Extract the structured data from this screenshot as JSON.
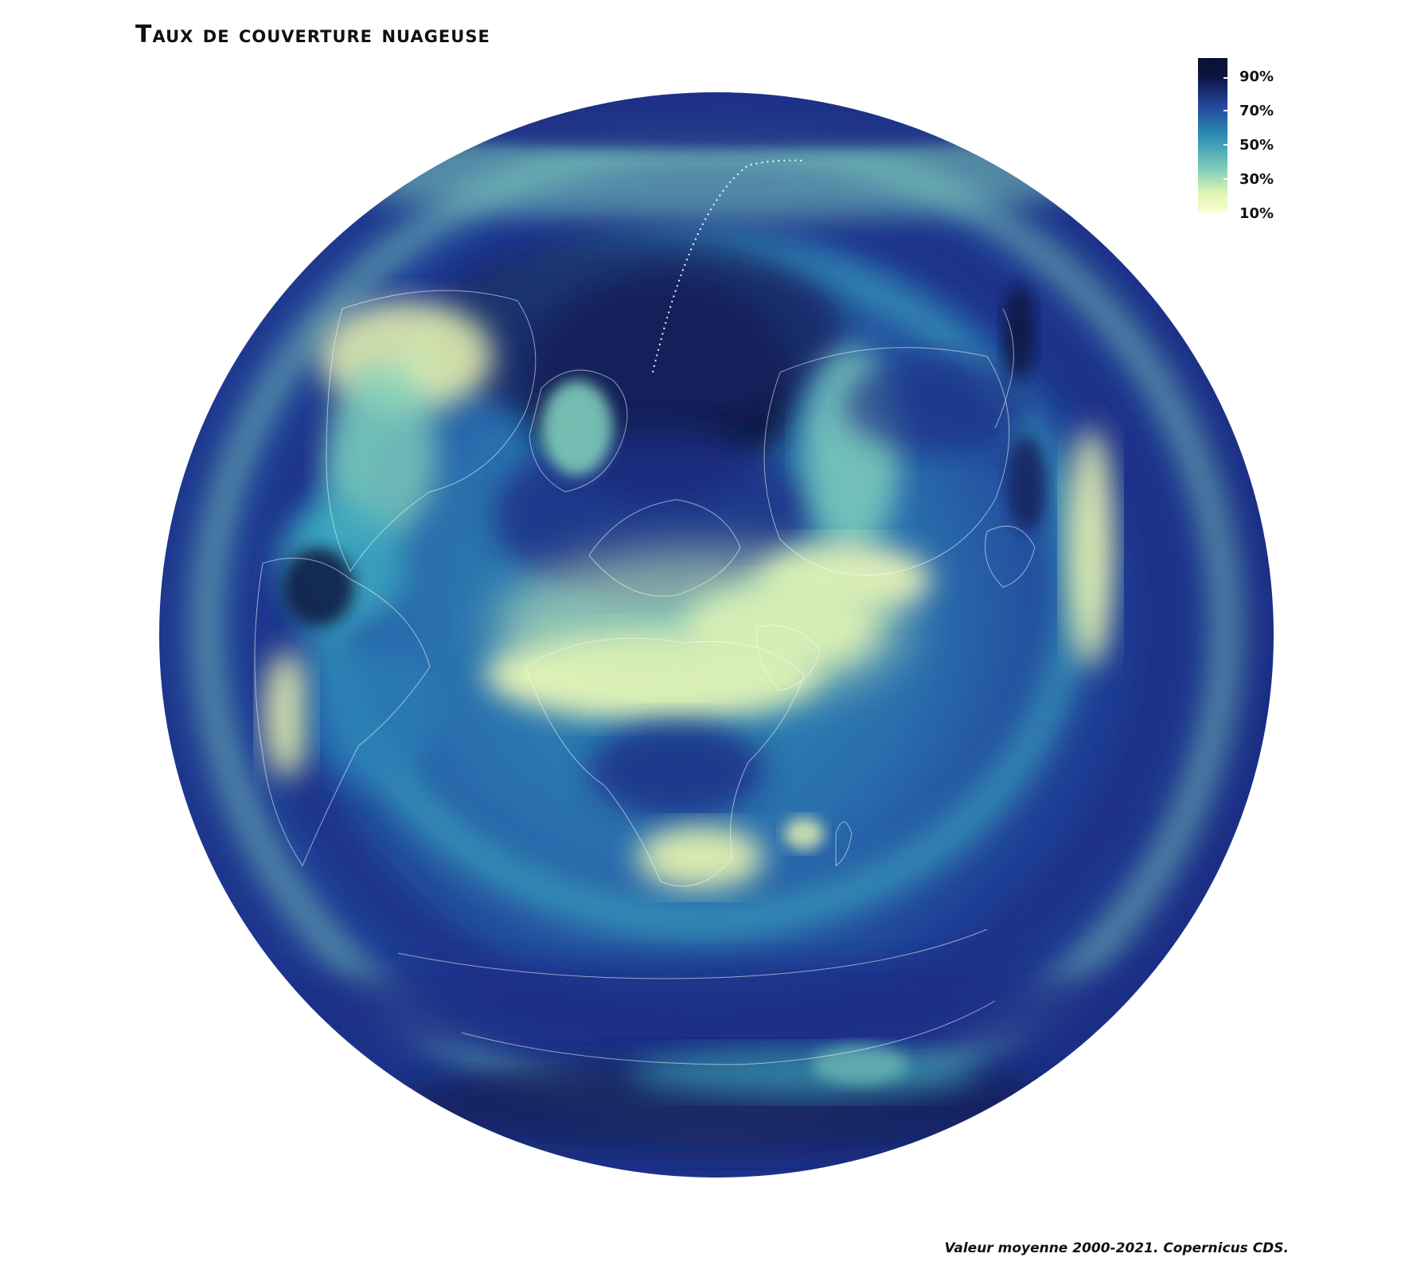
{
  "title": "Taux de couverture nuageuse",
  "caption": "Valeur moyenne 2000-2021. Copernicus CDS.",
  "legend": {
    "labels": [
      "90%",
      "70%",
      "50%",
      "30%",
      "10%"
    ],
    "colors": {
      "high": "#0b1440",
      "mid_high": "#24439a",
      "mid": "#2b8db4",
      "mid_low": "#7fcdbb",
      "low": "#f4fbb9"
    }
  },
  "map": {
    "projection": "orthographic",
    "variable": "cloud cover"
  }
}
